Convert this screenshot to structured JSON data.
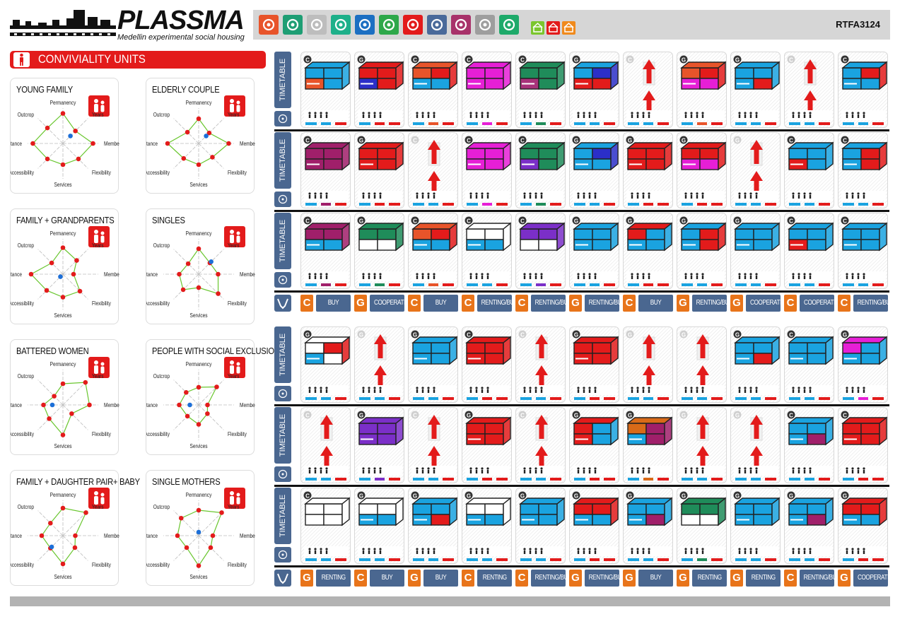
{
  "header": {
    "brand": "PLASSMA",
    "subtitle": "Medellin experimental social housing",
    "code": "RTFA3124",
    "toolbar_icons": [
      {
        "name": "gear-icon",
        "color": "#e8542a"
      },
      {
        "name": "tent-icon",
        "color": "#1e9e74"
      },
      {
        "name": "blocks-icon",
        "color": "#bdbdbd"
      },
      {
        "name": "grid-dots-icon",
        "color": "#1eb08a"
      },
      {
        "name": "hands-icon",
        "color": "#1c6fc2"
      },
      {
        "name": "piggy-bank-icon",
        "color": "#2ea84a"
      },
      {
        "name": "person-icon",
        "color": "#e31b1b"
      },
      {
        "name": "hands-care-icon",
        "color": "#4a6a9a"
      },
      {
        "name": "ruler-icon",
        "color": "#a8326a"
      },
      {
        "name": "cogs-icon",
        "color": "#9e9e9e"
      },
      {
        "name": "recycle-icon",
        "color": "#1eaa6a"
      }
    ],
    "mini_icons": [
      {
        "name": "chart-icon",
        "color": "#7bc62d"
      },
      {
        "name": "house-icon",
        "color": "#e31b1b"
      },
      {
        "name": "buildings-icon",
        "color": "#f08a1c"
      }
    ]
  },
  "conviviality": {
    "title": "CONVIVIALITY UNITS",
    "axes": [
      "Permanency",
      "Years",
      "Membership",
      "Flexibility",
      "Services",
      "Accessibility",
      "Assistance",
      "Outcrop"
    ],
    "profiles": [
      {
        "title": "YOUNG FAMILY",
        "icon": "family-icon",
        "values": [
          0.85,
          0.5,
          0.85,
          0.62,
          0.6,
          0.62,
          0.85,
          0.62
        ],
        "blue": [
          1,
          0.3
        ]
      },
      {
        "title": "ELDERLY COUPLE",
        "icon": "elderly-couple-icon",
        "values": [
          0.7,
          0.42,
          0.85,
          0.55,
          0.6,
          0.6,
          0.88,
          0.45
        ],
        "blue": [
          1,
          0.3
        ]
      },
      {
        "title": "FAMILY + GRANDPARENTS",
        "icon": "family-grandparents-icon",
        "values": [
          0.75,
          0.55,
          0.3,
          0.68,
          0.65,
          0.65,
          0.9,
          0.45
        ],
        "blue": [
          5,
          0.1
        ]
      },
      {
        "title": "SINGLES",
        "icon": "single-person-icon",
        "values": [
          0.72,
          0.45,
          0.55,
          0.78,
          0.38,
          0.62,
          0.55,
          0.42
        ],
        "blue": [
          1,
          0.5
        ]
      },
      {
        "title": "BATTERED WOMEN",
        "icon": "woman-icon",
        "values": [
          0.6,
          0.9,
          0.75,
          0.35,
          0.85,
          0.55,
          0.55,
          0.35
        ],
        "blue": [
          6,
          0.3
        ]
      },
      {
        "title": "PEOPLE WITH SOCIAL EXCLUSION",
        "icon": "kneeling-person-icon",
        "values": [
          0.5,
          0.72,
          0.25,
          0.35,
          0.55,
          0.45,
          0.55,
          0.5
        ],
        "blue": [
          6,
          0.25
        ]
      },
      {
        "title": "FAMILY + DAUGHTER PAIR+ BABY",
        "icon": "family-baby-icon",
        "values": [
          0.78,
          0.92,
          0.35,
          0.48,
          0.8,
          0.5,
          0.6,
          0.5
        ],
        "blue": [
          5,
          0.45
        ]
      },
      {
        "title": "SINGLE MOTHERS",
        "icon": "mother-child-icon",
        "values": [
          0.72,
          0.92,
          0.4,
          0.48,
          0.85,
          0.48,
          0.6,
          0.7
        ],
        "blue": [
          0,
          0.1
        ]
      }
    ]
  },
  "section_label": "TIMETABLE",
  "grid_top": {
    "rows": [
      {
        "cards": [
          {
            "type": "build",
            "colors": [
              "#1aa3e0",
              "#1aa3e0",
              "#e8542a",
              "#1aa3e0"
            ],
            "badge": "C"
          },
          {
            "type": "build",
            "colors": [
              "#e31b1b",
              "#e31b1b",
              "#2b2fc8",
              "#e31b1b"
            ],
            "badge": "G"
          },
          {
            "type": "build",
            "colors": [
              "#e8542a",
              "#e31b1b",
              "#1aa3e0",
              "#1aa3e0"
            ],
            "badge": "C"
          },
          {
            "type": "build",
            "colors": [
              "#e61fd6",
              "#e61fd6",
              "#e61fd6",
              "#e61fd6"
            ],
            "badge": "C"
          },
          {
            "type": "build",
            "colors": [
              "#1f8c5a",
              "#1f8c5a",
              "#a8327a",
              "#1f8c5a"
            ],
            "badge": "C"
          },
          {
            "type": "build",
            "colors": [
              "#1aa3e0",
              "#2b2fc8",
              "#e31b1b",
              "#e31b1b"
            ],
            "badge": "G"
          },
          {
            "type": "arrow",
            "badge": "C"
          },
          {
            "type": "build",
            "colors": [
              "#e8542a",
              "#e31b1b",
              "#e61fd6",
              "#e61fd6"
            ],
            "badge": "G"
          },
          {
            "type": "build",
            "colors": [
              "#1aa3e0",
              "#1aa3e0",
              "#1aa3e0",
              "#e31b1b"
            ],
            "badge": "G"
          },
          {
            "type": "arrow",
            "badge": "C"
          },
          {
            "type": "build",
            "colors": [
              "#1aa3e0",
              "#e31b1b",
              "#1aa3e0",
              "#1aa3e0"
            ],
            "badge": "C"
          }
        ]
      },
      {
        "cards": [
          {
            "type": "build",
            "colors": [
              "#a01f6a",
              "#a01f6a",
              "#a01f6a",
              "#a01f6a"
            ],
            "badge": "C"
          },
          {
            "type": "build",
            "colors": [
              "#e31b1b",
              "#e31b1b",
              "#e31b1b",
              "#e31b1b"
            ],
            "badge": "G"
          },
          {
            "type": "arrow",
            "badge": "C"
          },
          {
            "type": "build",
            "colors": [
              "#e61fd6",
              "#e61fd6",
              "#e61fd6",
              "#e61fd6"
            ],
            "badge": "C"
          },
          {
            "type": "build",
            "colors": [
              "#1f8c5a",
              "#1f8c5a",
              "#7b2fc8",
              "#1f8c5a"
            ],
            "badge": "C"
          },
          {
            "type": "build",
            "colors": [
              "#1aa3e0",
              "#2b2fc8",
              "#1aa3e0",
              "#1aa3e0"
            ],
            "badge": "G"
          },
          {
            "type": "build",
            "colors": [
              "#e31b1b",
              "#e31b1b",
              "#e31b1b",
              "#e31b1b"
            ],
            "badge": "G"
          },
          {
            "type": "build",
            "colors": [
              "#e31b1b",
              "#e31b1b",
              "#e61fd6",
              "#e61fd6"
            ],
            "badge": "G"
          },
          {
            "type": "arrow",
            "badge": "G"
          },
          {
            "type": "build",
            "colors": [
              "#1aa3e0",
              "#1aa3e0",
              "#e31b1b",
              "#1aa3e0"
            ],
            "badge": "C"
          },
          {
            "type": "build",
            "colors": [
              "#1aa3e0",
              "#e31b1b",
              "#1aa3e0",
              "#e31b1b"
            ],
            "badge": "C"
          }
        ]
      },
      {
        "cards": [
          {
            "type": "build",
            "colors": [
              "#a01f6a",
              "#a01f6a",
              "#1aa3e0",
              "#1aa3e0"
            ],
            "badge": "C"
          },
          {
            "type": "build",
            "colors": [
              "#1f8c5a",
              "#1f8c5a",
              "#ffffff",
              "#ffffff"
            ],
            "badge": "G"
          },
          {
            "type": "build",
            "colors": [
              "#e8542a",
              "#e31b1b",
              "#1aa3e0",
              "#1aa3e0"
            ],
            "badge": "C"
          },
          {
            "type": "build",
            "colors": [
              "#ffffff",
              "#ffffff",
              "#1aa3e0",
              "#1aa3e0"
            ],
            "badge": "C"
          },
          {
            "type": "build",
            "colors": [
              "#7b2fc8",
              "#7b2fc8",
              "#ffffff",
              "#ffffff"
            ],
            "badge": "C"
          },
          {
            "type": "build",
            "colors": [
              "#1aa3e0",
              "#1aa3e0",
              "#1aa3e0",
              "#1aa3e0"
            ],
            "badge": "G"
          },
          {
            "type": "build",
            "colors": [
              "#e31b1b",
              "#1aa3e0",
              "#1aa3e0",
              "#1aa3e0"
            ],
            "badge": "G"
          },
          {
            "type": "build",
            "colors": [
              "#1aa3e0",
              "#e31b1b",
              "#1aa3e0",
              "#e31b1b"
            ],
            "badge": "G"
          },
          {
            "type": "build",
            "colors": [
              "#1aa3e0",
              "#1aa3e0",
              "#1aa3e0",
              "#1aa3e0"
            ],
            "badge": "G"
          },
          {
            "type": "build",
            "colors": [
              "#1aa3e0",
              "#1aa3e0",
              "#e31b1b",
              "#1aa3e0"
            ],
            "badge": "C"
          },
          {
            "type": "build",
            "colors": [
              "#1aa3e0",
              "#1aa3e0",
              "#1aa3e0",
              "#1aa3e0"
            ],
            "badge": "C"
          }
        ]
      }
    ],
    "tenure": [
      {
        "badge": "C",
        "label": "BUY"
      },
      {
        "badge": "G",
        "label": "COOPERATIVE"
      },
      {
        "badge": "C",
        "label": "BUY"
      },
      {
        "badge": "C",
        "label": "RENTING/BUY"
      },
      {
        "badge": "C",
        "label": "RENTING/BUY"
      },
      {
        "badge": "G",
        "label": "RENTING/BUY"
      },
      {
        "badge": "C",
        "label": "BUY"
      },
      {
        "badge": "G",
        "label": "RENTING/BUY"
      },
      {
        "badge": "G",
        "label": "COOPERATIVE"
      },
      {
        "badge": "C",
        "label": "COOPERATIVE"
      },
      {
        "badge": "C",
        "label": "RENTING/BUY"
      }
    ]
  },
  "grid_bottom": {
    "rows": [
      {
        "cards": [
          {
            "type": "build",
            "colors": [
              "#ffffff",
              "#e31b1b",
              "#1aa3e0",
              "#ffffff"
            ],
            "badge": "G"
          },
          {
            "type": "arrow",
            "badge": "G"
          },
          {
            "type": "build",
            "colors": [
              "#1aa3e0",
              "#1aa3e0",
              "#1aa3e0",
              "#1aa3e0"
            ],
            "badge": "G"
          },
          {
            "type": "build",
            "colors": [
              "#e31b1b",
              "#e31b1b",
              "#e31b1b",
              "#e31b1b"
            ],
            "badge": "C"
          },
          {
            "type": "arrow",
            "badge": "C"
          },
          {
            "type": "build",
            "colors": [
              "#e31b1b",
              "#e31b1b",
              "#e31b1b",
              "#e31b1b"
            ],
            "badge": "G"
          },
          {
            "type": "arrow",
            "badge": "G"
          },
          {
            "type": "arrow",
            "badge": "G"
          },
          {
            "type": "build",
            "colors": [
              "#1aa3e0",
              "#1aa3e0",
              "#1aa3e0",
              "#e31b1b"
            ],
            "badge": "G"
          },
          {
            "type": "build",
            "colors": [
              "#1aa3e0",
              "#1aa3e0",
              "#1aa3e0",
              "#1aa3e0"
            ],
            "badge": "C"
          },
          {
            "type": "build",
            "colors": [
              "#e61fd6",
              "#1aa3e0",
              "#1aa3e0",
              "#1aa3e0"
            ],
            "badge": "G"
          }
        ]
      },
      {
        "cards": [
          {
            "type": "arrow",
            "badge": "C"
          },
          {
            "type": "build",
            "colors": [
              "#7b2fc8",
              "#7b2fc8",
              "#7b2fc8",
              "#7b2fc8"
            ],
            "badge": "G"
          },
          {
            "type": "arrow",
            "badge": "C"
          },
          {
            "type": "build",
            "colors": [
              "#e31b1b",
              "#e31b1b",
              "#e31b1b",
              "#e31b1b"
            ],
            "badge": "G"
          },
          {
            "type": "arrow",
            "badge": "C"
          },
          {
            "type": "build",
            "colors": [
              "#e31b1b",
              "#1aa3e0",
              "#e31b1b",
              "#1aa3e0"
            ],
            "badge": "G"
          },
          {
            "type": "build",
            "colors": [
              "#d96a18",
              "#a01f6a",
              "#1aa3e0",
              "#a01f6a"
            ],
            "badge": "G"
          },
          {
            "type": "arrow",
            "badge": "G"
          },
          {
            "type": "arrow",
            "badge": "G"
          },
          {
            "type": "build",
            "colors": [
              "#1aa3e0",
              "#1aa3e0",
              "#1aa3e0",
              "#a01f6a"
            ],
            "badge": "C"
          },
          {
            "type": "build",
            "colors": [
              "#e31b1b",
              "#e31b1b",
              "#e31b1b",
              "#e31b1b"
            ],
            "badge": "C"
          }
        ]
      },
      {
        "cards": [
          {
            "type": "build",
            "colors": [
              "#ffffff",
              "#ffffff",
              "#ffffff",
              "#ffffff"
            ],
            "badge": "C"
          },
          {
            "type": "build",
            "colors": [
              "#ffffff",
              "#ffffff",
              "#1aa3e0",
              "#1aa3e0"
            ],
            "badge": "G"
          },
          {
            "type": "build",
            "colors": [
              "#1aa3e0",
              "#1aa3e0",
              "#1aa3e0",
              "#e31b1b"
            ],
            "badge": "G"
          },
          {
            "type": "build",
            "colors": [
              "#ffffff",
              "#ffffff",
              "#1aa3e0",
              "#1aa3e0"
            ],
            "badge": "G"
          },
          {
            "type": "build",
            "colors": [
              "#1aa3e0",
              "#1aa3e0",
              "#1aa3e0",
              "#1aa3e0"
            ],
            "badge": "G"
          },
          {
            "type": "build",
            "colors": [
              "#e31b1b",
              "#e31b1b",
              "#1aa3e0",
              "#1aa3e0"
            ],
            "badge": "G"
          },
          {
            "type": "build",
            "colors": [
              "#1aa3e0",
              "#1aa3e0",
              "#1aa3e0",
              "#a01f6a"
            ],
            "badge": "G"
          },
          {
            "type": "build",
            "colors": [
              "#1f8c5a",
              "#1f8c5a",
              "#ffffff",
              "#ffffff"
            ],
            "badge": "G"
          },
          {
            "type": "build",
            "colors": [
              "#1aa3e0",
              "#1aa3e0",
              "#1aa3e0",
              "#1aa3e0"
            ],
            "badge": "G"
          },
          {
            "type": "build",
            "colors": [
              "#1aa3e0",
              "#1aa3e0",
              "#1aa3e0",
              "#a01f6a"
            ],
            "badge": "G"
          },
          {
            "type": "build",
            "colors": [
              "#e31b1b",
              "#e31b1b",
              "#1aa3e0",
              "#1aa3e0"
            ],
            "badge": "G"
          }
        ]
      }
    ],
    "tenure": [
      {
        "badge": "G",
        "label": "RENTING"
      },
      {
        "badge": "C",
        "label": "BUY"
      },
      {
        "badge": "G",
        "label": "BUY"
      },
      {
        "badge": "C",
        "label": "RENTING"
      },
      {
        "badge": "C",
        "label": "RENTING/BUY"
      },
      {
        "badge": "G",
        "label": "RENTING/BUY"
      },
      {
        "badge": "G",
        "label": "BUY"
      },
      {
        "badge": "G",
        "label": "RENTING"
      },
      {
        "badge": "G",
        "label": "RENTING"
      },
      {
        "badge": "C",
        "label": "RENTING/BUY"
      },
      {
        "badge": "G",
        "label": "COOPERATIVE"
      }
    ]
  }
}
